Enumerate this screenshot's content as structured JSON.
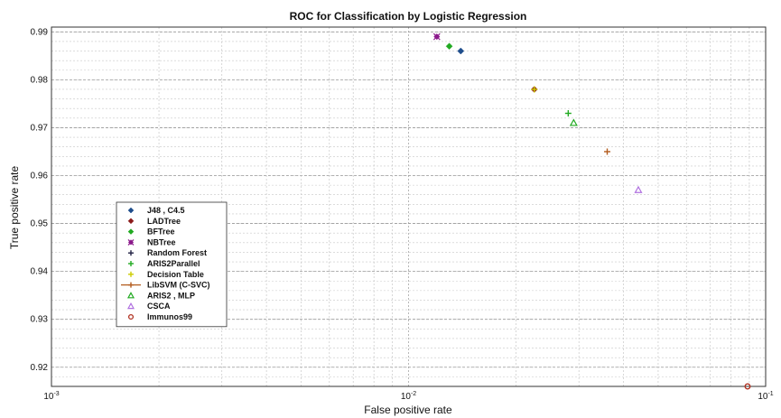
{
  "chart_data": {
    "type": "scatter",
    "title": "ROC for Classification by Logistic Regression",
    "xlabel": "False positive rate",
    "ylabel": "True positive rate",
    "xscale": "log",
    "xlim": [
      0.001,
      0.1
    ],
    "ylim": [
      0.916,
      0.991
    ],
    "grid": "on",
    "legend_position": "left",
    "x_ticks": [
      0.001,
      0.01,
      0.1
    ],
    "x_tick_labels": [
      {
        "base": "10",
        "exp": "-3"
      },
      {
        "base": "10",
        "exp": "-2"
      },
      {
        "base": "10",
        "exp": "-1"
      }
    ],
    "y_ticks": [
      0.92,
      0.93,
      0.94,
      0.95,
      0.96,
      0.97,
      0.98,
      0.99
    ],
    "y_tick_labels": [
      "0.92",
      "0.93",
      "0.94",
      "0.95",
      "0.96",
      "0.97",
      "0.98",
      "0.99"
    ],
    "series": [
      {
        "name": "J48 , C4.5",
        "marker": "diamond",
        "color": "#1f4e8c",
        "points": [
          [
            0.014,
            0.986
          ]
        ]
      },
      {
        "name": "LADTree",
        "marker": "diamond",
        "color": "#8b1a1a",
        "points": [
          [
            0.0225,
            0.978
          ]
        ]
      },
      {
        "name": "BFTree",
        "marker": "diamond",
        "color": "#22aa22",
        "points": [
          [
            0.013,
            0.987
          ]
        ]
      },
      {
        "name": "NBTree",
        "marker": "star",
        "color": "#8b1a8b",
        "points": [
          [
            0.012,
            0.989
          ]
        ]
      },
      {
        "name": "Random Forest",
        "marker": "plus",
        "color": "#222244",
        "points": []
      },
      {
        "name": "ARIS2Parallel",
        "marker": "plus",
        "color": "#22aa22",
        "points": [
          [
            0.028,
            0.973
          ]
        ]
      },
      {
        "name": "Decision Table",
        "marker": "plus",
        "color": "#cccc00",
        "points": [
          [
            0.0225,
            0.978
          ]
        ]
      },
      {
        "name": "LibSVM (C-SVC)",
        "marker": "plus-line",
        "color": "#b35c1e",
        "points": [
          [
            0.036,
            0.965
          ]
        ]
      },
      {
        "name": "ARIS2 , MLP",
        "marker": "triangle",
        "color": "#22aa22",
        "points": [
          [
            0.029,
            0.971
          ]
        ]
      },
      {
        "name": "CSCA",
        "marker": "triangle",
        "color": "#b070e0",
        "points": [
          [
            0.044,
            0.957
          ]
        ]
      },
      {
        "name": "Immunos99",
        "marker": "circle",
        "color": "#b03020",
        "points": [
          [
            0.089,
            0.916
          ]
        ]
      }
    ]
  }
}
